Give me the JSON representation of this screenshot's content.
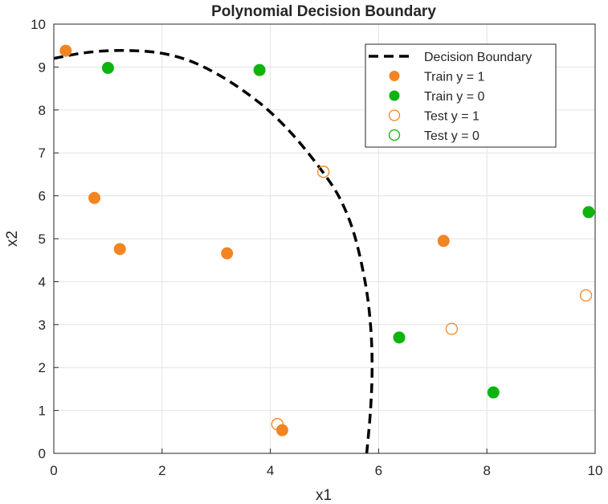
{
  "chart_data": {
    "type": "scatter",
    "title": "Polynomial Decision Boundary",
    "xlabel": "x1",
    "ylabel": "x2",
    "xlim": [
      0,
      10
    ],
    "ylim": [
      0,
      10
    ],
    "xticks": [
      "0",
      "2",
      "4",
      "6",
      "8",
      "10"
    ],
    "yticks": [
      "0",
      "1",
      "2",
      "3",
      "4",
      "5",
      "6",
      "7",
      "8",
      "9",
      "10"
    ],
    "grid": true,
    "legend_position": "top-right",
    "colors": {
      "class1": "#F28522",
      "class0": "#0DB40D",
      "boundary": "#000000"
    },
    "boundary": {
      "name": "Decision Boundary",
      "points": [
        [
          0.0,
          9.2
        ],
        [
          0.5,
          9.32
        ],
        [
          1.0,
          9.38
        ],
        [
          1.5,
          9.38
        ],
        [
          2.0,
          9.32
        ],
        [
          2.5,
          9.15
        ],
        [
          3.0,
          8.85
        ],
        [
          3.5,
          8.45
        ],
        [
          4.0,
          7.95
        ],
        [
          4.5,
          7.3
        ],
        [
          5.0,
          6.5
        ],
        [
          5.3,
          5.9
        ],
        [
          5.55,
          5.1
        ],
        [
          5.75,
          4.0
        ],
        [
          5.85,
          3.0
        ],
        [
          5.88,
          2.0
        ],
        [
          5.85,
          1.0
        ],
        [
          5.78,
          0.0
        ]
      ]
    },
    "series": [
      {
        "name": "Train y = 1",
        "marker": "filled",
        "color": "#F28522",
        "points": [
          [
            0.22,
            9.38
          ],
          [
            0.75,
            5.95
          ],
          [
            1.22,
            4.76
          ],
          [
            3.2,
            4.66
          ],
          [
            4.22,
            0.54
          ],
          [
            7.2,
            4.95
          ]
        ]
      },
      {
        "name": "Train y = 0",
        "marker": "filled",
        "color": "#0DB40D",
        "points": [
          [
            1.0,
            8.98
          ],
          [
            3.8,
            8.93
          ],
          [
            6.38,
            2.7
          ],
          [
            8.12,
            1.42
          ],
          [
            9.88,
            5.62
          ]
        ]
      },
      {
        "name": "Test y = 1",
        "marker": "open",
        "color": "#F28522",
        "points": [
          [
            4.98,
            6.56
          ],
          [
            4.13,
            0.68
          ],
          [
            7.35,
            2.9
          ],
          [
            9.83,
            3.68
          ]
        ]
      },
      {
        "name": "Test y = 0",
        "marker": "open",
        "color": "#0DB40D",
        "points": []
      }
    ]
  }
}
